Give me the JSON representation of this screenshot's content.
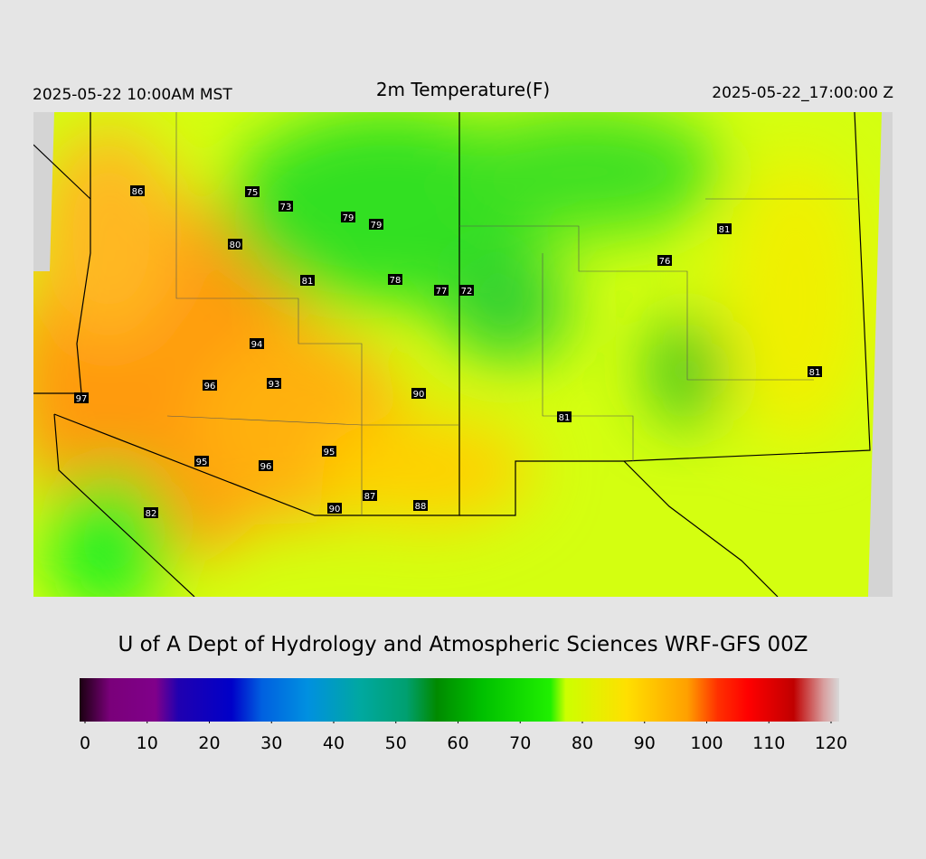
{
  "header": {
    "local_time": "2025-05-22 10:00AM MST",
    "title": "2m Temperature(F)",
    "utc_time": "2025-05-22_17:00:00 Z"
  },
  "map": {
    "labels": [
      86,
      75,
      73,
      79,
      79,
      80,
      81,
      78,
      77,
      72,
      81,
      76,
      94,
      96,
      93,
      90,
      97,
      81,
      81,
      95,
      95,
      96,
      87,
      90,
      88,
      82
    ]
  },
  "credit": "U of A Dept of Hydrology and Atmospheric Sciences WRF-GFS 00Z",
  "colorbar": {
    "range": [
      0,
      120
    ],
    "ticks": [
      0,
      10,
      20,
      30,
      40,
      50,
      60,
      70,
      80,
      90,
      100,
      110,
      120
    ]
  }
}
